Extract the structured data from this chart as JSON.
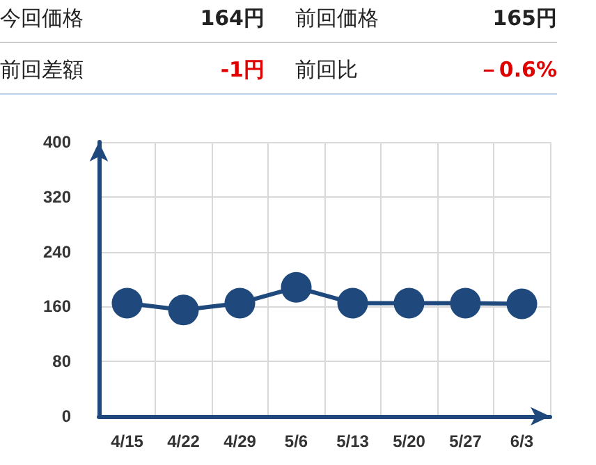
{
  "chart_data": {
    "type": "line",
    "categories": [
      "4/15",
      "4/22",
      "4/29",
      "5/6",
      "5/13",
      "5/20",
      "5/27",
      "6/3"
    ],
    "series": [
      {
        "color": "#1f497d",
        "values": [
          165,
          155,
          165,
          188,
          165,
          165,
          165,
          164
        ]
      }
    ],
    "ylim": [
      0,
      400
    ],
    "yticks": [
      0,
      80,
      160,
      240,
      320,
      400
    ],
    "grid": true,
    "marker": "circle",
    "line_style": "solid",
    "annotations": [
      "今回価格",
      "164円",
      "前回価格",
      "165円",
      "前回差額",
      "-1円",
      "前回比",
      "－0.6%"
    ]
  }
}
